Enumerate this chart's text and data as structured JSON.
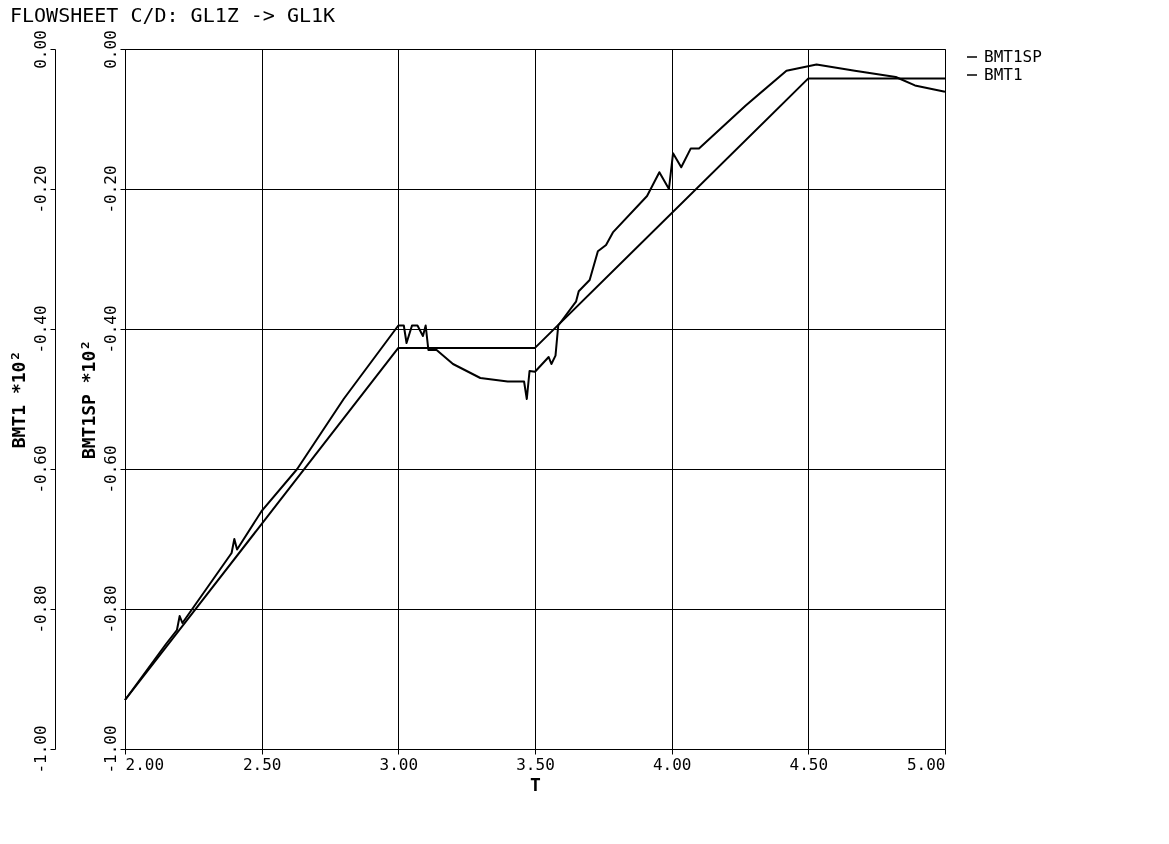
{
  "chart_data": {
    "type": "line",
    "title": "FLOWSHEET C/D: GL1Z -> GL1K",
    "xlabel": "T",
    "ylabel": "BMT1 *10²",
    "y2label": "BMT1SP *10²",
    "xlim": [
      2.0,
      5.0
    ],
    "xticks": [
      {
        "value": 2,
        "label": "2.00"
      },
      {
        "value": 2.5,
        "label": "2.50"
      },
      {
        "value": 3,
        "label": "3.00"
      },
      {
        "value": 3.5,
        "label": "3.50"
      },
      {
        "value": 4,
        "label": "4.00"
      },
      {
        "value": 4.5,
        "label": "4.50"
      },
      {
        "value": 5,
        "label": "5.00"
      }
    ],
    "ylim": [
      -1.0,
      0.0
    ],
    "yticks": [
      {
        "value": -1,
        "label": "-1.00"
      },
      {
        "value": -0.8,
        "label": "-0.80"
      },
      {
        "value": -0.6,
        "label": "-0.60"
      },
      {
        "value": -0.4,
        "label": "-0.40"
      },
      {
        "value": -0.2,
        "label": "-0.20"
      },
      {
        "value": 0,
        "label": "0.00"
      }
    ],
    "y2lim": [
      -1.0,
      0.0
    ],
    "y2ticks": [
      {
        "value": -1,
        "label": "-1.00"
      },
      {
        "value": -0.8,
        "label": "-0.80"
      },
      {
        "value": -0.6,
        "label": "-0.60"
      },
      {
        "value": -0.4,
        "label": "-0.40"
      },
      {
        "value": -0.2,
        "label": "-0.20"
      },
      {
        "value": 0,
        "label": "0.00"
      }
    ],
    "grid": true,
    "legend": "top right",
    "marker": "none",
    "line_style": "solid",
    "series": [
      {
        "name": "BMT1SP",
        "color": "#000000",
        "axis": "y2",
        "x": [
          2.0,
          3.0,
          3.5,
          4.5,
          5.0
        ],
        "values": [
          -0.93,
          -0.427,
          -0.427,
          -0.042,
          -0.042
        ]
      },
      {
        "name": "BMT1",
        "color": "#000000",
        "x": [
          2.0,
          2.15,
          2.19,
          2.2,
          2.21,
          2.39,
          2.4,
          2.41,
          2.5,
          2.63,
          2.8,
          3.0,
          3.02,
          3.03,
          3.05,
          3.07,
          3.09,
          3.1,
          3.11,
          3.14,
          3.2,
          3.3,
          3.4,
          3.46,
          3.47,
          3.48,
          3.5,
          3.55,
          3.56,
          3.575,
          3.585,
          3.65,
          3.66,
          3.7,
          3.73,
          3.76,
          3.785,
          3.91,
          3.955,
          3.99,
          4.005,
          4.035,
          4.07,
          4.1,
          4.27,
          4.42,
          4.53,
          4.67,
          4.82,
          4.89,
          5.0
        ],
        "values": [
          -0.93,
          -0.85,
          -0.83,
          -0.81,
          -0.82,
          -0.72,
          -0.7,
          -0.715,
          -0.66,
          -0.6,
          -0.5,
          -0.395,
          -0.395,
          -0.42,
          -0.395,
          -0.395,
          -0.41,
          -0.395,
          -0.43,
          -0.43,
          -0.45,
          -0.47,
          -0.475,
          -0.475,
          -0.5,
          -0.46,
          -0.461,
          -0.44,
          -0.45,
          -0.438,
          -0.395,
          -0.361,
          -0.346,
          -0.33,
          -0.289,
          -0.28,
          -0.262,
          -0.21,
          -0.176,
          -0.2,
          -0.149,
          -0.169,
          -0.142,
          -0.142,
          -0.081,
          -0.031,
          -0.022,
          -0.031,
          -0.04,
          -0.052,
          -0.061
        ]
      }
    ]
  }
}
